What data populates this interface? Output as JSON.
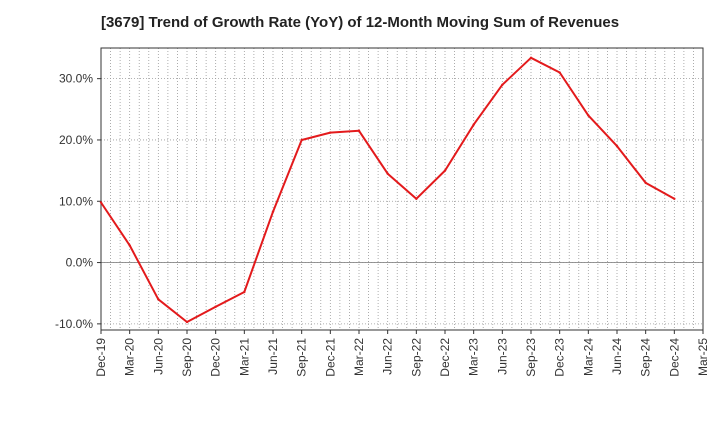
{
  "chart_data": {
    "type": "line",
    "title": "[3679]  Trend of Growth Rate (YoY) of 12-Month Moving Sum of Revenues",
    "xlabel": "",
    "ylabel": "",
    "ylim": [
      -11,
      35
    ],
    "yticks": [
      -10,
      0,
      10,
      20,
      30
    ],
    "ytick_labels": [
      "-10.0%",
      "0.0%",
      "10.0%",
      "20.0%",
      "30.0%"
    ],
    "categories": [
      "Dec-19",
      "Mar-20",
      "Jun-20",
      "Sep-20",
      "Dec-20",
      "Mar-21",
      "Jun-21",
      "Sep-21",
      "Dec-21",
      "Mar-22",
      "Jun-22",
      "Sep-22",
      "Dec-22",
      "Mar-23",
      "Jun-23",
      "Sep-23",
      "Dec-23",
      "Mar-24",
      "Jun-24",
      "Sep-24",
      "Dec-24",
      "Mar-25"
    ],
    "series": [
      {
        "values": [
          9.8,
          2.8,
          -6.0,
          -9.7,
          -7.2,
          -4.8,
          8.3,
          20.0,
          21.2,
          21.5,
          14.5,
          10.4,
          15.0,
          22.5,
          29.0,
          33.4,
          31.0,
          24.0,
          19.0,
          13.0,
          10.4,
          null
        ]
      }
    ],
    "grid": true,
    "legend": "none",
    "colors": {
      "line": "#e31a1c",
      "grid": "#999999",
      "axis": "#333333"
    }
  }
}
